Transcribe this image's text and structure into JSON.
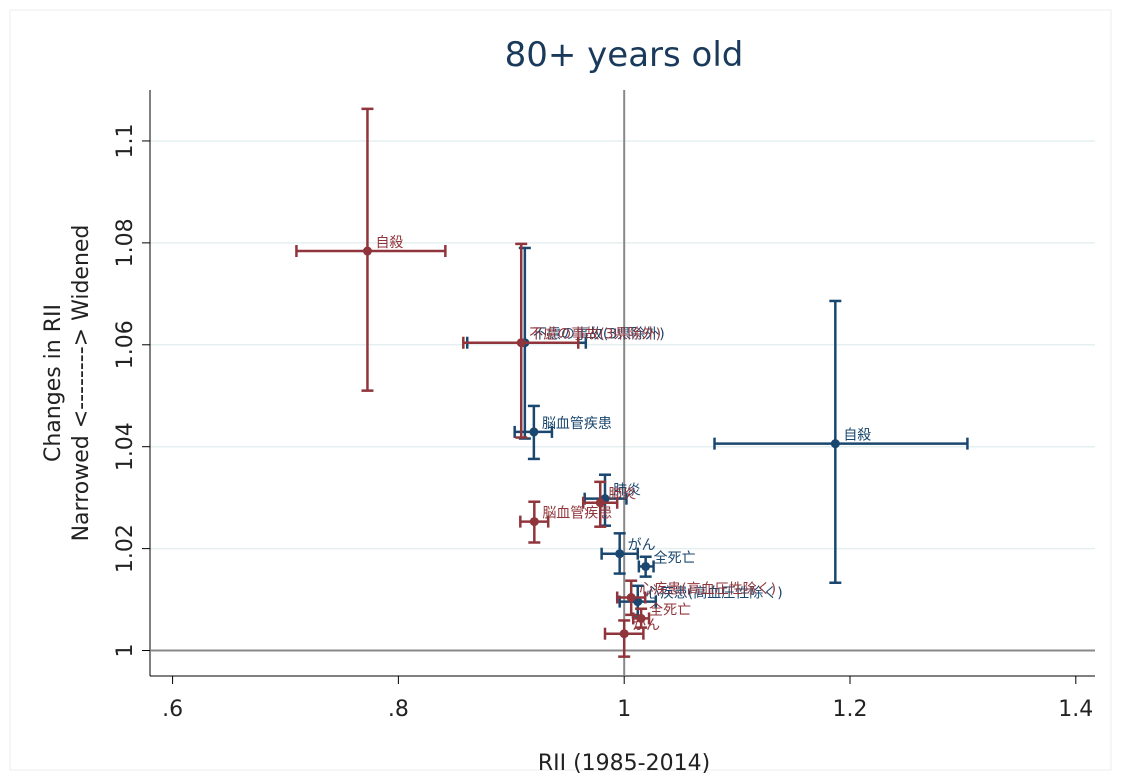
{
  "chart_data": {
    "type": "scatter",
    "title": "80+ years old",
    "xlabel": "RII (1985-2014)",
    "ylabel": [
      "Changes in RII",
      "Narrowed <--------> Widened"
    ],
    "xlim": [
      0.58,
      1.417
    ],
    "ylim": [
      0.995,
      1.11
    ],
    "xticks": [
      {
        "value": 0.6,
        "label": ".6"
      },
      {
        "value": 0.8,
        "label": ".8"
      },
      1,
      1.2,
      1.4
    ],
    "yticks": [
      1,
      1.02,
      1.04,
      1.06,
      1.08,
      1.1
    ],
    "grid": true,
    "reflines": {
      "x": 1,
      "y": 1
    },
    "series": [
      {
        "color": "#1a476f",
        "labels": [
          "自殺",
          "脳血管疾患",
          "不慮の事故(3県除外)",
          "肺炎",
          "がん",
          "全死亡",
          "心疾患(高血圧性除く)"
        ],
        "x": [
          1.187,
          0.92,
          0.912,
          0.983,
          0.996,
          1.019,
          1.012
        ],
        "x_low": [
          1.08,
          0.903,
          0.861,
          0.965,
          0.98,
          1.013,
          0.996
        ],
        "x_high": [
          1.304,
          0.936,
          0.966,
          1.002,
          1.012,
          1.026,
          1.028
        ],
        "values": [
          1.0406,
          1.0429,
          1.0604,
          1.0298,
          1.019,
          1.0165,
          1.0096
        ],
        "y_low": [
          1.0133,
          1.0376,
          1.0416,
          1.0245,
          1.0151,
          1.0145,
          1.0065
        ],
        "y_high": [
          1.0686,
          1.048,
          1.079,
          1.0345,
          1.023,
          1.0184,
          1.0127
        ]
      },
      {
        "color": "#90353b",
        "labels": [
          "自殺",
          "不慮の事故(3県除外)",
          "肺炎",
          "脳血管疾患",
          "心疾患(高血圧性除く)",
          "全死亡",
          "がん"
        ],
        "x": [
          0.7726,
          0.9088,
          0.9788,
          0.9204,
          1.0062,
          1.015,
          1.0
        ],
        "x_low": [
          0.7097,
          0.8575,
          0.9637,
          0.908,
          0.9938,
          1.008,
          0.983
        ],
        "x_high": [
          0.8416,
          0.9593,
          0.9938,
          0.9327,
          1.0186,
          1.022,
          1.017
        ],
        "values": [
          1.0784,
          1.0604,
          1.029,
          1.0253,
          1.0104,
          1.0063,
          1.0033
        ],
        "y_low": [
          1.051,
          1.0418,
          1.0243,
          1.0212,
          1.007,
          1.0045,
          0.9988
        ],
        "y_high": [
          1.1063,
          1.0798,
          1.0331,
          1.0292,
          1.0137,
          1.0082,
          1.0059
        ]
      }
    ]
  }
}
